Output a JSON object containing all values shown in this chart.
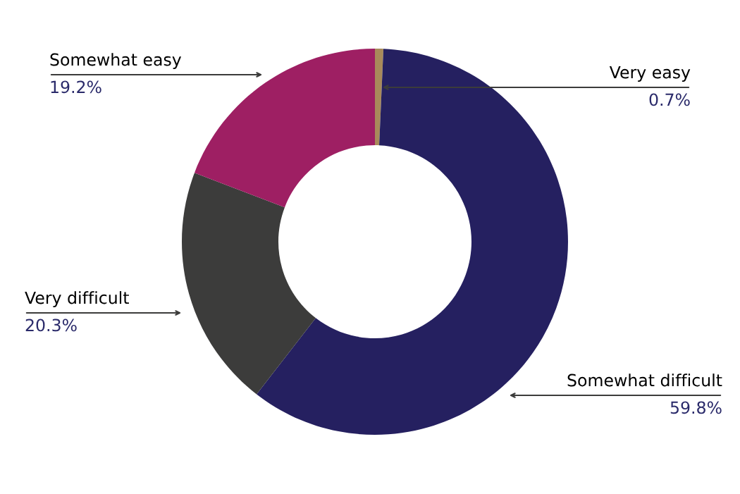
{
  "chart_data": {
    "type": "donut",
    "categories": [
      "Very easy",
      "Somewhat difficult",
      "Very difficult",
      "Somewhat easy"
    ],
    "values": [
      0.7,
      59.8,
      20.3,
      19.2
    ],
    "value_labels": [
      "0.7%",
      "59.8%",
      "20.3%",
      "19.2%"
    ],
    "colors": [
      "#a88a5a",
      "#252060",
      "#3c3c3b",
      "#9e1f63"
    ],
    "legend": false
  }
}
